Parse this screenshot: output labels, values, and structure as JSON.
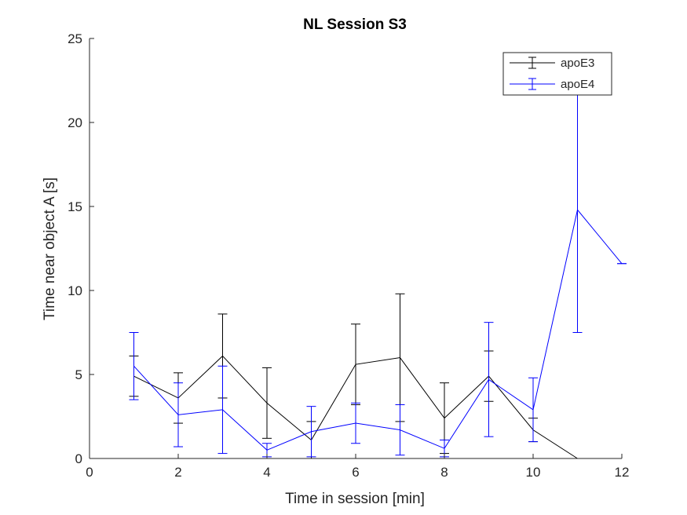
{
  "chart_data": {
    "type": "line",
    "title": "NL Session S3",
    "xlabel": "Time in session [min]",
    "ylabel": "Time near object A [s]",
    "xlim": [
      0,
      12
    ],
    "ylim": [
      0,
      25
    ],
    "xticks": [
      "0",
      "2",
      "4",
      "6",
      "8",
      "10",
      "12"
    ],
    "yticks": [
      "0",
      "5",
      "10",
      "15",
      "20",
      "25"
    ],
    "grid": false,
    "legend_placement": "top-right",
    "series": [
      {
        "name": "apoE3",
        "color": "#000000",
        "x": [
          1,
          2,
          3,
          4,
          5,
          6,
          7,
          8,
          9,
          10,
          11
        ],
        "y": [
          4.9,
          3.6,
          6.1,
          3.3,
          1.1,
          5.6,
          6.0,
          2.4,
          4.9,
          1.7,
          0.0
        ],
        "err": [
          1.2,
          1.5,
          2.5,
          2.1,
          1.1,
          2.4,
          3.8,
          2.1,
          1.5,
          0.7,
          0.0
        ]
      },
      {
        "name": "apoE4",
        "color": "#0000ff",
        "x": [
          1,
          2,
          3,
          4,
          5,
          6,
          7,
          8,
          9,
          10,
          11,
          12
        ],
        "y": [
          5.5,
          2.6,
          2.9,
          0.5,
          1.6,
          2.1,
          1.7,
          0.6,
          4.7,
          2.9,
          14.8,
          11.6
        ],
        "err": [
          2.0,
          1.9,
          2.6,
          0.4,
          1.5,
          1.2,
          1.5,
          0.5,
          3.4,
          1.9,
          7.3,
          0.0
        ]
      }
    ]
  }
}
